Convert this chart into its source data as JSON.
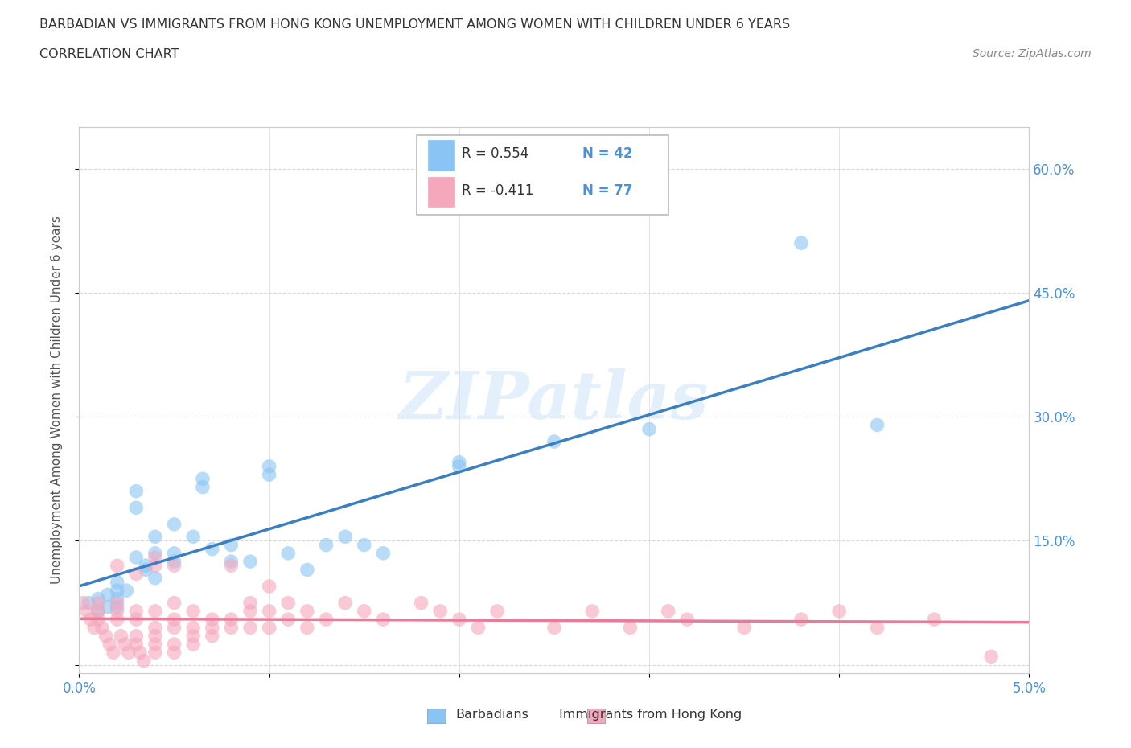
{
  "title_line1": "BARBADIAN VS IMMIGRANTS FROM HONG KONG UNEMPLOYMENT AMONG WOMEN WITH CHILDREN UNDER 6 YEARS",
  "title_line2": "CORRELATION CHART",
  "source": "Source: ZipAtlas.com",
  "ylabel": "Unemployment Among Women with Children Under 6 years",
  "xlim": [
    0.0,
    0.05
  ],
  "ylim": [
    -0.01,
    0.65
  ],
  "xticks": [
    0.0,
    0.01,
    0.02,
    0.03,
    0.04,
    0.05
  ],
  "xticklabels": [
    "0.0%",
    "",
    "",
    "",
    "",
    "5.0%"
  ],
  "yticks_right": [
    0.15,
    0.3,
    0.45,
    0.6
  ],
  "yticklabels_right": [
    "15.0%",
    "30.0%",
    "45.0%",
    "60.0%"
  ],
  "yticks_grid": [
    0.0,
    0.15,
    0.3,
    0.45,
    0.6
  ],
  "background_color": "#ffffff",
  "grid_color": "#d8d8d8",
  "watermark_text": "ZIPatlas",
  "barbadian_color": "#89c4f4",
  "hk_color": "#f5a7bc",
  "barbadian_line_color": "#3a7fc1",
  "hk_line_color": "#e87a9a",
  "barbadian_scatter": [
    [
      0.0005,
      0.075
    ],
    [
      0.001,
      0.065
    ],
    [
      0.001,
      0.08
    ],
    [
      0.0015,
      0.07
    ],
    [
      0.0015,
      0.085
    ],
    [
      0.002,
      0.08
    ],
    [
      0.002,
      0.09
    ],
    [
      0.002,
      0.07
    ],
    [
      0.002,
      0.1
    ],
    [
      0.0025,
      0.09
    ],
    [
      0.003,
      0.19
    ],
    [
      0.003,
      0.21
    ],
    [
      0.003,
      0.13
    ],
    [
      0.0035,
      0.12
    ],
    [
      0.004,
      0.155
    ],
    [
      0.004,
      0.135
    ],
    [
      0.0035,
      0.115
    ],
    [
      0.004,
      0.105
    ],
    [
      0.005,
      0.17
    ],
    [
      0.005,
      0.135
    ],
    [
      0.005,
      0.125
    ],
    [
      0.006,
      0.155
    ],
    [
      0.0065,
      0.225
    ],
    [
      0.0065,
      0.215
    ],
    [
      0.007,
      0.14
    ],
    [
      0.008,
      0.145
    ],
    [
      0.008,
      0.125
    ],
    [
      0.009,
      0.125
    ],
    [
      0.01,
      0.24
    ],
    [
      0.01,
      0.23
    ],
    [
      0.011,
      0.135
    ],
    [
      0.012,
      0.115
    ],
    [
      0.013,
      0.145
    ],
    [
      0.014,
      0.155
    ],
    [
      0.015,
      0.145
    ],
    [
      0.016,
      0.135
    ],
    [
      0.02,
      0.24
    ],
    [
      0.02,
      0.245
    ],
    [
      0.025,
      0.27
    ],
    [
      0.03,
      0.285
    ],
    [
      0.038,
      0.51
    ],
    [
      0.042,
      0.29
    ]
  ],
  "hk_scatter": [
    [
      0.0002,
      0.075
    ],
    [
      0.0004,
      0.065
    ],
    [
      0.0006,
      0.055
    ],
    [
      0.0008,
      0.045
    ],
    [
      0.001,
      0.075
    ],
    [
      0.001,
      0.065
    ],
    [
      0.001,
      0.055
    ],
    [
      0.0012,
      0.045
    ],
    [
      0.0014,
      0.035
    ],
    [
      0.0016,
      0.025
    ],
    [
      0.0018,
      0.015
    ],
    [
      0.002,
      0.075
    ],
    [
      0.002,
      0.065
    ],
    [
      0.002,
      0.055
    ],
    [
      0.002,
      0.12
    ],
    [
      0.0022,
      0.035
    ],
    [
      0.0024,
      0.025
    ],
    [
      0.0026,
      0.015
    ],
    [
      0.003,
      0.11
    ],
    [
      0.003,
      0.065
    ],
    [
      0.003,
      0.055
    ],
    [
      0.003,
      0.035
    ],
    [
      0.003,
      0.025
    ],
    [
      0.0032,
      0.015
    ],
    [
      0.0034,
      0.005
    ],
    [
      0.004,
      0.13
    ],
    [
      0.004,
      0.12
    ],
    [
      0.004,
      0.065
    ],
    [
      0.004,
      0.045
    ],
    [
      0.004,
      0.035
    ],
    [
      0.004,
      0.025
    ],
    [
      0.004,
      0.015
    ],
    [
      0.005,
      0.12
    ],
    [
      0.005,
      0.075
    ],
    [
      0.005,
      0.055
    ],
    [
      0.005,
      0.045
    ],
    [
      0.005,
      0.025
    ],
    [
      0.005,
      0.015
    ],
    [
      0.006,
      0.065
    ],
    [
      0.006,
      0.045
    ],
    [
      0.006,
      0.035
    ],
    [
      0.006,
      0.025
    ],
    [
      0.007,
      0.055
    ],
    [
      0.007,
      0.045
    ],
    [
      0.007,
      0.035
    ],
    [
      0.008,
      0.12
    ],
    [
      0.008,
      0.055
    ],
    [
      0.008,
      0.045
    ],
    [
      0.009,
      0.075
    ],
    [
      0.009,
      0.065
    ],
    [
      0.009,
      0.045
    ],
    [
      0.01,
      0.095
    ],
    [
      0.01,
      0.065
    ],
    [
      0.01,
      0.045
    ],
    [
      0.011,
      0.075
    ],
    [
      0.011,
      0.055
    ],
    [
      0.012,
      0.065
    ],
    [
      0.012,
      0.045
    ],
    [
      0.013,
      0.055
    ],
    [
      0.014,
      0.075
    ],
    [
      0.015,
      0.065
    ],
    [
      0.016,
      0.055
    ],
    [
      0.018,
      0.075
    ],
    [
      0.019,
      0.065
    ],
    [
      0.02,
      0.055
    ],
    [
      0.021,
      0.045
    ],
    [
      0.022,
      0.065
    ],
    [
      0.025,
      0.045
    ],
    [
      0.027,
      0.065
    ],
    [
      0.029,
      0.045
    ],
    [
      0.031,
      0.065
    ],
    [
      0.032,
      0.055
    ],
    [
      0.035,
      0.045
    ],
    [
      0.038,
      0.055
    ],
    [
      0.04,
      0.065
    ],
    [
      0.042,
      0.045
    ],
    [
      0.045,
      0.055
    ],
    [
      0.048,
      0.01
    ]
  ]
}
